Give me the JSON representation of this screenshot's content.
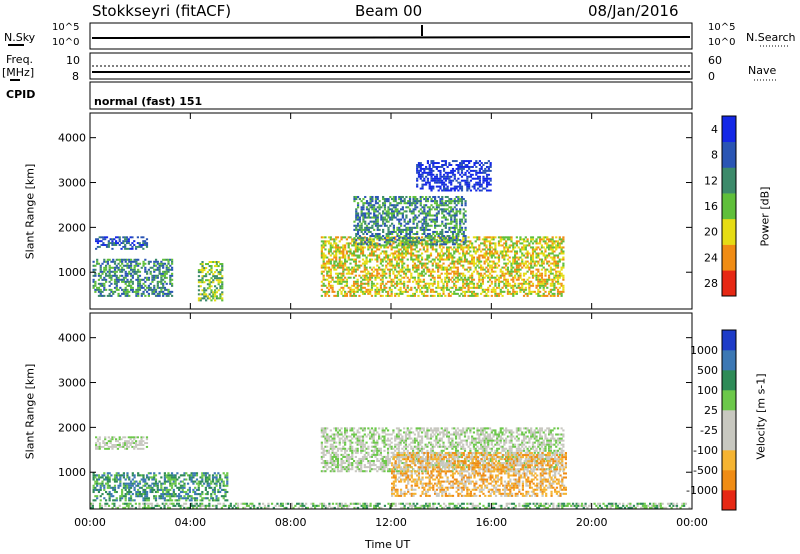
{
  "header": {
    "station": "Stokkseyri (fitACF)",
    "beam": "Beam 00",
    "date": "08/Jan/2016"
  },
  "noise_panel": {
    "left_label": "N.Sky",
    "right_label": "N.Search",
    "left_ticks": [
      "10^5",
      "10^0"
    ],
    "right_ticks": [
      "10^5",
      "10^0"
    ]
  },
  "freq_panel": {
    "left_label_1": "Freq.",
    "left_label_2": "[MHz]",
    "right_label": "Nave",
    "left_ticks": [
      "10",
      "8"
    ],
    "right_ticks": [
      "60",
      "0"
    ]
  },
  "cpid": {
    "label": "CPID",
    "value": "normal (fast) 151"
  },
  "chart_data": [
    {
      "type": "heatmap",
      "quantity": "Power",
      "ylabel": "Slant Range [km]",
      "xlabel": "Time UT",
      "x_ticks": [
        "00:00",
        "04:00",
        "08:00",
        "12:00",
        "16:00",
        "20:00",
        "00:00"
      ],
      "y_ticks": [
        "1000",
        "2000",
        "3000",
        "4000"
      ],
      "xlim_hours": [
        0,
        24
      ],
      "ylim_km": [
        180,
        4550
      ],
      "colorbar": {
        "label": "Power [dB]",
        "ticks": [
          "4",
          "8",
          "12",
          "16",
          "20",
          "24",
          "28"
        ],
        "colors": [
          "#1428e6",
          "#2a55b4",
          "#3c8a6a",
          "#5fbf3a",
          "#e6dc14",
          "#f08c14",
          "#e62814"
        ]
      },
      "echo_regions": [
        {
          "t0": 0.2,
          "t1": 2.3,
          "r0": 1500,
          "r1": 1800,
          "level": 1
        },
        {
          "t0": 0.1,
          "t1": 3.3,
          "r0": 450,
          "r1": 1300,
          "level": 2
        },
        {
          "t0": 4.3,
          "t1": 5.3,
          "r0": 350,
          "r1": 1250,
          "level": 3
        },
        {
          "t0": 9.2,
          "t1": 18.9,
          "r0": 450,
          "r1": 1800,
          "level": 4
        },
        {
          "t0": 10.5,
          "t1": 15.0,
          "r0": 1600,
          "r1": 2700,
          "level": 2
        },
        {
          "t0": 13.0,
          "t1": 16.0,
          "r0": 2800,
          "r1": 3500,
          "level": 0
        }
      ]
    },
    {
      "type": "heatmap",
      "quantity": "Velocity",
      "ylabel": "Slant Range [km]",
      "xlabel": "Time UT",
      "x_ticks": [
        "00:00",
        "04:00",
        "08:00",
        "12:00",
        "16:00",
        "20:00",
        "00:00"
      ],
      "y_ticks": [
        "1000",
        "2000",
        "3000",
        "4000"
      ],
      "xlim_hours": [
        0,
        24
      ],
      "ylim_km": [
        180,
        4550
      ],
      "colorbar": {
        "label": "Velocity [m s-1]",
        "ticks": [
          "1000",
          "500",
          "100",
          "25",
          "-25",
          "-100",
          "-500",
          "-1000"
        ],
        "colors": [
          "#1e3cc8",
          "#3c78b4",
          "#2e8b57",
          "#6cc84a",
          "#c8c8c0",
          "#c8c8c0",
          "#f5b432",
          "#f08c14",
          "#e62814"
        ]
      },
      "echo_regions": [
        {
          "t0": 0.2,
          "t1": 2.3,
          "r0": 1500,
          "r1": 1800,
          "level": 4
        },
        {
          "t0": 0.1,
          "t1": 5.5,
          "r0": 350,
          "r1": 1000,
          "level": 2
        },
        {
          "t0": 9.2,
          "t1": 18.9,
          "r0": 1000,
          "r1": 2000,
          "level": 4
        },
        {
          "t0": 12.0,
          "t1": 19.0,
          "r0": 450,
          "r1": 1450,
          "level": 6
        },
        {
          "t0": 0.0,
          "t1": 24.0,
          "r0": 180,
          "r1": 320,
          "level": 3
        }
      ]
    }
  ]
}
